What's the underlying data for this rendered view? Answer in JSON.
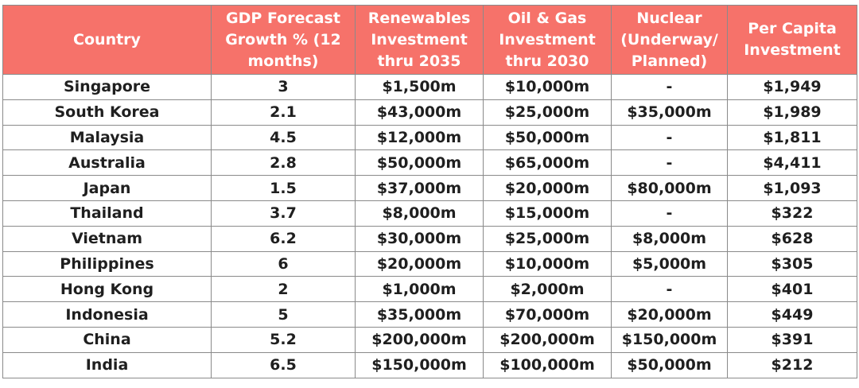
{
  "table": {
    "headers": [
      "Country",
      "GDP Forecast\nGrowth % (12\nmonths)",
      "Renewables\nInvestment\nthru 2035",
      "Oil & Gas\nInvestment\nthru 2030",
      "Nuclear\n(Underway/\nPlanned)",
      "Per Capita\nInvestment"
    ],
    "rows": [
      [
        "Singapore",
        "3",
        "$1,500m",
        "$10,000m",
        "-",
        "$1,949"
      ],
      [
        "South Korea",
        "2.1",
        "$43,000m",
        "$25,000m",
        "$35,000m",
        "$1,989"
      ],
      [
        "Malaysia",
        "4.5",
        "$12,000m",
        "$50,000m",
        "-",
        "$1,811"
      ],
      [
        "Australia",
        "2.8",
        "$50,000m",
        "$65,000m",
        "-",
        "$4,411"
      ],
      [
        "Japan",
        "1.5",
        "$37,000m",
        "$20,000m",
        "$80,000m",
        "$1,093"
      ],
      [
        "Thailand",
        "3.7",
        "$8,000m",
        "$15,000m",
        "-",
        "$322"
      ],
      [
        "Vietnam",
        "6.2",
        "$30,000m",
        "$25,000m",
        "$8,000m",
        "$628"
      ],
      [
        "Philippines",
        "6",
        "$20,000m",
        "$10,000m",
        "$5,000m",
        "$305"
      ],
      [
        "Hong Kong",
        "2",
        "$1,000m",
        "$2,000m",
        "-",
        "$401"
      ],
      [
        "Indonesia",
        "5",
        "$35,000m",
        "$70,000m",
        "$20,000m",
        "$449"
      ],
      [
        "China",
        "5.2",
        "$200,000m",
        "$200,000m",
        "$150,000m",
        "$391"
      ],
      [
        "India",
        "6.5",
        "$150,000m",
        "$100,000m",
        "$50,000m",
        "$212"
      ]
    ]
  },
  "colors": {
    "header_bg": "#f6726a",
    "header_text": "#ffffff",
    "cell_text": "#1f1f1f",
    "grid": "#8a8a8a"
  }
}
